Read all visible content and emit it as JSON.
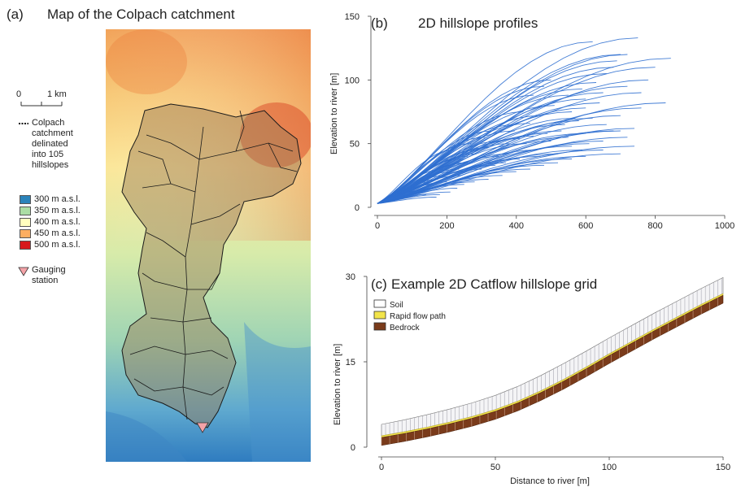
{
  "panel_a": {
    "label": "(a)",
    "title": "Map of the Colpach catchment",
    "scalebar": {
      "start": "0",
      "end": "1 km"
    },
    "catchment_legend_lines": [
      "Colpach",
      "catchment",
      "delinated",
      "into 105",
      "hillslopes"
    ],
    "elevation_legend": [
      {
        "label": "300 m a.s.l.",
        "color": "#2b83ba"
      },
      {
        "label": "350 m a.s.l.",
        "color": "#abdda4"
      },
      {
        "label": "400 m a.s.l.",
        "color": "#ffffbf"
      },
      {
        "label": "450 m a.s.l.",
        "color": "#fdae61"
      },
      {
        "label": "500 m a.s.l.",
        "color": "#d7191c"
      }
    ],
    "gauge_legend_lines": [
      "Gauging",
      "station"
    ]
  },
  "chart_data": [
    {
      "panel": "(b)",
      "type": "line",
      "title": "2D hillslope profiles",
      "xlabel": "",
      "ylabel": "Elevation to river [m]",
      "xlim": [
        0,
        1000
      ],
      "ylim": [
        0,
        150
      ],
      "xticks": [
        0,
        200,
        400,
        600,
        800,
        1000
      ],
      "yticks": [
        0,
        50,
        100,
        150
      ],
      "series_color": "#2f6fd0",
      "n_profiles": 105,
      "profile_end_points": [
        [
          750,
          133
        ],
        [
          845,
          117
        ],
        [
          830,
          82
        ],
        [
          760,
          78
        ],
        [
          620,
          130
        ],
        [
          700,
          120
        ],
        [
          680,
          110
        ],
        [
          720,
          95
        ],
        [
          650,
          90
        ],
        [
          600,
          85
        ],
        [
          560,
          75
        ],
        [
          700,
          72
        ],
        [
          740,
          62
        ],
        [
          680,
          60
        ],
        [
          720,
          55
        ],
        [
          600,
          58
        ],
        [
          550,
          55
        ],
        [
          500,
          52
        ],
        [
          740,
          48
        ],
        [
          700,
          42
        ],
        [
          650,
          45
        ],
        [
          600,
          40
        ],
        [
          560,
          38
        ],
        [
          520,
          35
        ],
        [
          480,
          33
        ],
        [
          440,
          30
        ],
        [
          400,
          28
        ],
        [
          380,
          42
        ],
        [
          360,
          25
        ],
        [
          320,
          22
        ],
        [
          300,
          30
        ],
        [
          280,
          20
        ],
        [
          260,
          35
        ],
        [
          250,
          18
        ],
        [
          240,
          25
        ],
        [
          230,
          15
        ],
        [
          220,
          45
        ],
        [
          210,
          12
        ],
        [
          200,
          20
        ],
        [
          190,
          30
        ],
        [
          180,
          10
        ],
        [
          170,
          8
        ],
        [
          160,
          15
        ],
        [
          150,
          20
        ],
        [
          140,
          10
        ],
        [
          480,
          95
        ],
        [
          500,
          100
        ],
        [
          450,
          88
        ],
        [
          420,
          75
        ],
        [
          400,
          65
        ],
        [
          430,
          50
        ],
        [
          460,
          45
        ],
        [
          350,
          40
        ],
        [
          330,
          60
        ],
        [
          310,
          55
        ],
        [
          270,
          50
        ],
        [
          540,
          65
        ],
        [
          580,
          68
        ],
        [
          620,
          70
        ],
        [
          660,
          65
        ],
        [
          700,
          60
        ],
        [
          610,
          50
        ],
        [
          650,
          52
        ],
        [
          590,
          45
        ],
        [
          560,
          48
        ],
        [
          520,
          42
        ],
        [
          470,
          40
        ],
        [
          410,
          38
        ],
        [
          370,
          35
        ],
        [
          340,
          33
        ],
        [
          800,
          110
        ],
        [
          780,
          100
        ],
        [
          760,
          90
        ],
        [
          640,
          82
        ],
        [
          600,
          78
        ],
        [
          570,
          70
        ],
        [
          530,
          60
        ],
        [
          490,
          58
        ],
        [
          450,
          56
        ],
        [
          410,
          54
        ],
        [
          380,
          50
        ],
        [
          290,
          45
        ],
        [
          260,
          40
        ],
        [
          240,
          38
        ],
        [
          720,
          120
        ],
        [
          690,
          115
        ],
        [
          660,
          105
        ],
        [
          630,
          98
        ],
        [
          590,
          93
        ],
        [
          550,
          88
        ],
        [
          510,
          80
        ],
        [
          470,
          72
        ],
        [
          440,
          66
        ],
        [
          395,
          60
        ],
        [
          355,
          52
        ],
        [
          320,
          47
        ],
        [
          285,
          42
        ],
        [
          255,
          35
        ],
        [
          235,
          30
        ],
        [
          215,
          28
        ],
        [
          195,
          25
        ],
        [
          175,
          22
        ],
        [
          160,
          18
        ],
        [
          145,
          14
        ],
        [
          130,
          12
        ]
      ]
    },
    {
      "panel": "(c)",
      "type": "area",
      "title": "Example 2D Catflow hillslope grid",
      "xlabel": "Distance to river [m]",
      "ylabel": "Elevation to river [m]",
      "xlim": [
        0,
        150
      ],
      "ylim": [
        0,
        30
      ],
      "xticks": [
        0,
        50,
        100,
        150
      ],
      "yticks": [
        0,
        15,
        30
      ],
      "legend": [
        {
          "name": "Soil",
          "color": "#ffffff"
        },
        {
          "name": "Rapid flow path",
          "color": "#f2e44a"
        },
        {
          "name": "Bedrock",
          "color": "#7a3b1b"
        }
      ],
      "surface_profile": {
        "x": [
          0,
          10,
          20,
          30,
          40,
          50,
          60,
          70,
          80,
          90,
          100,
          110,
          120,
          130,
          140,
          150
        ],
        "y": [
          4,
          4.8,
          5.7,
          6.7,
          7.8,
          9.1,
          10.7,
          12.6,
          14.7,
          16.9,
          19.2,
          21.4,
          23.6,
          25.7,
          27.8,
          29.8
        ]
      },
      "bedrock_top_profile": {
        "x": [
          0,
          10,
          20,
          30,
          40,
          50,
          60,
          70,
          80,
          90,
          100,
          110,
          120,
          130,
          140,
          150
        ],
        "y": [
          1.7,
          2.4,
          3.2,
          4.1,
          5.1,
          6.3,
          7.8,
          9.6,
          11.6,
          13.8,
          16.1,
          18.3,
          20.5,
          22.6,
          24.7,
          26.7
        ]
      },
      "bedrock_thickness_m": 1.4,
      "rapid_flow_thickness_m": 0.3
    }
  ]
}
